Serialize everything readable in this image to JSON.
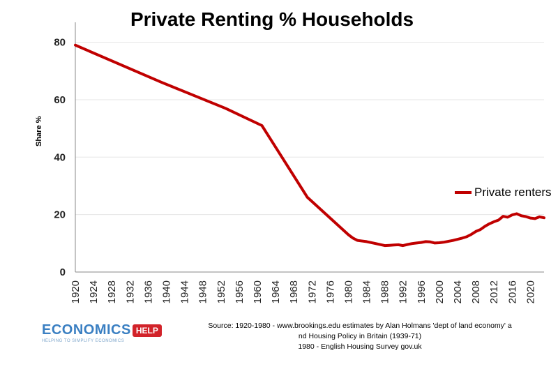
{
  "chart_data": {
    "type": "line",
    "title": "Private Renting % Households",
    "xlabel": "",
    "ylabel": "Share %",
    "ylim": [
      0,
      85
    ],
    "xlim": [
      1920,
      2023
    ],
    "yticks": [
      0,
      20,
      40,
      60,
      80
    ],
    "xticks": [
      1920,
      1924,
      1928,
      1932,
      1936,
      1940,
      1944,
      1948,
      1952,
      1956,
      1960,
      1964,
      1968,
      1972,
      1976,
      1980,
      1984,
      1988,
      1992,
      1996,
      2000,
      2004,
      2008,
      2012,
      2016,
      2020
    ],
    "grid": "horizontal",
    "legend_position": "right",
    "series": [
      {
        "name": "Private renters",
        "color": "#c00000",
        "x": [
          1920,
          1939,
          1953,
          1961,
          1971,
          1980,
          1981,
          1982,
          1984,
          1986,
          1988,
          1989,
          1990,
          1991,
          1992,
          1993,
          1994,
          1995,
          1996,
          1997,
          1998,
          1999,
          2000,
          2001,
          2002,
          2003,
          2004,
          2005,
          2006,
          2007,
          2008,
          2009,
          2010,
          2011,
          2012,
          2013,
          2014,
          2015,
          2016,
          2017,
          2018,
          2019,
          2020,
          2021,
          2022,
          2023
        ],
        "y": [
          79,
          66,
          57,
          51,
          26,
          13,
          11.8,
          11,
          10.6,
          9.9,
          9.2,
          9.3,
          9.4,
          9.5,
          9.2,
          9.6,
          9.9,
          10.1,
          10.3,
          10.6,
          10.5,
          10.1,
          10.2,
          10.4,
          10.7,
          11.0,
          11.4,
          11.8,
          12.3,
          13.1,
          14.1,
          14.8,
          15.9,
          16.8,
          17.5,
          18.1,
          19.4,
          19.1,
          19.9,
          20.3,
          19.6,
          19.3,
          18.8,
          18.6,
          19.2,
          18.9
        ]
      }
    ]
  },
  "logo": {
    "word": "ECONOMICS",
    "badge": "HELP",
    "tagline": "HELPING TO SIMPLIFY ECONOMICS",
    "word_color": "#3a7fc2",
    "badge_color": "#d2232a"
  },
  "source": {
    "line1": "Source: 1920-1980 - www.brookings.edu estimates by Alan Holmans 'dept of land economy' a",
    "line2": "nd Housing Policy in Britain (1939-71)",
    "line3": "1980 - English Housing Survey gov.uk"
  }
}
